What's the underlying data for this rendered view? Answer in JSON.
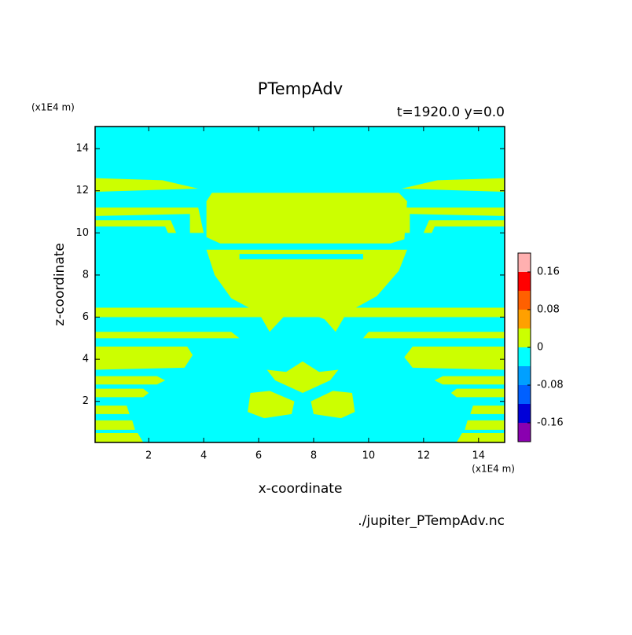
{
  "chart_data": {
    "type": "contour",
    "title": "PTempAdv",
    "subtitle": "t=1920.0 y=0.0",
    "x_label": "x-coordinate",
    "y_label": "z-coordinate",
    "x_unit": "(x1E4 m)",
    "y_unit": "(x1E4 m)",
    "source": "./jupiter_PTempAdv.nc",
    "xlim": [
      0.05,
      14.95
    ],
    "ylim": [
      0.05,
      15.05
    ],
    "xticks": [
      2,
      4,
      6,
      8,
      10,
      12,
      14
    ],
    "yticks": [
      2,
      4,
      6,
      8,
      10,
      12,
      14
    ],
    "levels": [
      -0.2,
      -0.16,
      -0.12,
      -0.08,
      -0.04,
      0,
      0.04,
      0.08,
      0.12,
      0.16,
      0.2
    ],
    "level_colors": [
      "#8a00b0",
      "#0000d8",
      "#0060ff",
      "#00a0ff",
      "#00ffff",
      "#ccff00",
      "#ffa000",
      "#ff6000",
      "#ff0000",
      "#ffb0b0"
    ],
    "colorbar_ticks": [
      0.16,
      0.08,
      0,
      -0.08,
      -0.16
    ],
    "background": -0.04,
    "regions": [
      {
        "value": 0,
        "x": [
          0.05,
          2.5,
          3.8,
          0.05
        ],
        "y": [
          12.6,
          12.5,
          12.1,
          11.95
        ]
      },
      {
        "value": 0,
        "x": [
          14.95,
          12.5,
          11.2,
          14.95
        ],
        "y": [
          12.6,
          12.5,
          12.1,
          11.95
        ]
      },
      {
        "value": 0,
        "x": [
          0.05,
          3.8,
          4.0,
          3.5,
          3.5,
          0.05
        ],
        "y": [
          11.2,
          11.2,
          10.0,
          10.0,
          10.9,
          10.8
        ]
      },
      {
        "value": 0,
        "x": [
          14.95,
          11.2,
          11.0,
          11.5,
          11.5,
          14.95
        ],
        "y": [
          11.2,
          11.2,
          10.0,
          10.0,
          10.9,
          10.8
        ]
      },
      {
        "value": 0,
        "x": [
          0.05,
          2.8,
          3.0,
          2.7,
          2.6,
          0.05
        ],
        "y": [
          10.6,
          10.6,
          10.0,
          10.0,
          10.3,
          10.3
        ]
      },
      {
        "value": 0,
        "x": [
          14.95,
          12.2,
          12.0,
          12.3,
          12.4,
          14.95
        ],
        "y": [
          10.6,
          10.6,
          10.0,
          10.0,
          10.3,
          10.3
        ]
      },
      {
        "value": 0,
        "x": [
          4.3,
          11.1,
          11.4,
          11.3,
          10.8,
          4.6,
          4.1,
          4.1
        ],
        "y": [
          11.9,
          11.9,
          11.5,
          9.7,
          9.5,
          9.5,
          9.8,
          11.5
        ]
      },
      {
        "value": 0,
        "x": [
          4.1,
          11.4,
          11.1,
          10.3,
          9.2,
          8.8,
          8.4,
          7.6,
          6.9,
          6.4,
          6.0,
          5.0,
          4.4
        ],
        "y": [
          9.2,
          9.2,
          8.2,
          7.0,
          6.2,
          5.3,
          5.9,
          6.3,
          6.0,
          5.3,
          6.2,
          6.9,
          8.0
        ]
      },
      {
        "value": -0.04,
        "x": [
          5.3,
          9.8,
          9.8,
          5.3
        ],
        "y": [
          9.0,
          9.0,
          8.75,
          8.75
        ]
      },
      {
        "value": 0,
        "x": [
          0.05,
          14.95,
          14.95,
          0.05
        ],
        "y": [
          6.45,
          6.45,
          6.0,
          6.0
        ]
      },
      {
        "value": 0,
        "x": [
          0.05,
          5.0,
          5.3,
          0.05
        ],
        "y": [
          5.3,
          5.3,
          5.0,
          5.0
        ]
      },
      {
        "value": 0,
        "x": [
          14.95,
          10.0,
          9.8,
          14.95
        ],
        "y": [
          5.3,
          5.3,
          5.0,
          5.0
        ]
      },
      {
        "value": 0,
        "x": [
          0.05,
          3.4,
          3.6,
          3.3,
          0.05
        ],
        "y": [
          4.6,
          4.6,
          4.2,
          3.6,
          3.5
        ]
      },
      {
        "value": 0,
        "x": [
          14.95,
          11.6,
          11.3,
          11.6,
          14.95
        ],
        "y": [
          4.6,
          4.6,
          4.1,
          3.6,
          3.5
        ]
      },
      {
        "value": 0,
        "x": [
          0.05,
          2.3,
          2.6,
          2.3,
          0.05
        ],
        "y": [
          3.2,
          3.2,
          3.0,
          2.8,
          2.8
        ]
      },
      {
        "value": 0,
        "x": [
          14.95,
          12.7,
          12.4,
          12.7,
          14.95
        ],
        "y": [
          3.2,
          3.2,
          3.0,
          2.8,
          2.8
        ]
      },
      {
        "value": 0,
        "x": [
          0.05,
          1.8,
          2.0,
          1.8,
          0.05
        ],
        "y": [
          2.6,
          2.6,
          2.4,
          2.2,
          2.2
        ]
      },
      {
        "value": 0,
        "x": [
          14.95,
          13.2,
          13.0,
          13.2,
          14.95
        ],
        "y": [
          2.6,
          2.6,
          2.4,
          2.2,
          2.2
        ]
      },
      {
        "value": 0,
        "x": [
          0.05,
          1.2,
          1.3,
          0.05
        ],
        "y": [
          1.8,
          1.8,
          1.4,
          1.4
        ]
      },
      {
        "value": 0,
        "x": [
          14.95,
          13.8,
          13.7,
          14.95
        ],
        "y": [
          1.8,
          1.8,
          1.4,
          1.4
        ]
      },
      {
        "value": 0,
        "x": [
          0.05,
          1.4,
          1.5,
          0.05
        ],
        "y": [
          1.1,
          1.1,
          0.65,
          0.65
        ]
      },
      {
        "value": 0,
        "x": [
          14.95,
          13.6,
          13.5,
          14.95
        ],
        "y": [
          1.1,
          1.1,
          0.65,
          0.65
        ]
      },
      {
        "value": 0,
        "x": [
          0.05,
          1.6,
          1.8,
          0.05
        ],
        "y": [
          0.5,
          0.5,
          0.05,
          0.05
        ]
      },
      {
        "value": 0,
        "x": [
          14.95,
          13.4,
          13.2,
          14.95
        ],
        "y": [
          0.5,
          0.5,
          0.05,
          0.05
        ]
      },
      {
        "value": 0,
        "x": [
          5.7,
          6.4,
          7.3,
          7.2,
          6.2,
          5.6
        ],
        "y": [
          2.4,
          2.5,
          2.0,
          1.4,
          1.2,
          1.5
        ]
      },
      {
        "value": 0,
        "x": [
          9.4,
          8.7,
          7.9,
          8.0,
          9.0,
          9.5
        ],
        "y": [
          2.4,
          2.5,
          2.0,
          1.4,
          1.2,
          1.5
        ]
      },
      {
        "value": 0,
        "x": [
          6.3,
          7.0,
          7.6,
          8.2,
          8.9,
          8.6,
          7.6,
          6.6
        ],
        "y": [
          3.5,
          3.4,
          3.9,
          3.4,
          3.5,
          3.0,
          2.4,
          3.0
        ]
      }
    ]
  }
}
